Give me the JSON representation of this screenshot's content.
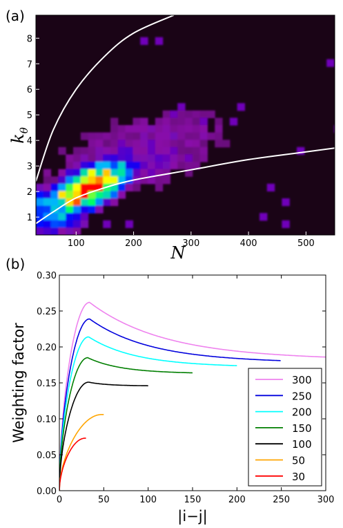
{
  "chart_data": [
    {
      "type": "heatmap",
      "panel_label": "(a)",
      "xlabel": "N",
      "ylabel_main": "k",
      "ylabel_sub": "θ",
      "xlim": [
        30,
        550
      ],
      "ylim": [
        0.3,
        8.9
      ],
      "xticks": [
        "100",
        "200",
        "300",
        "400",
        "500"
      ],
      "yticks": [
        "1",
        "2",
        "3",
        "4",
        "5",
        "6",
        "7",
        "8"
      ],
      "colormap": [
        "#1a0416",
        "#8a08a8",
        "#0000ff",
        "#00b4ff",
        "#00ff66",
        "#ffff00",
        "#ff8800",
        "#ff0000"
      ],
      "boundary_curves": [
        {
          "color": "#ffffff",
          "points": [
            [
              30,
              2.4
            ],
            [
              60,
              4.4
            ],
            [
              100,
              6.0
            ],
            [
              150,
              7.3
            ],
            [
              200,
              8.2
            ],
            [
              270,
              8.9
            ]
          ]
        },
        {
          "color": "#ffffff",
          "points": [
            [
              30,
              0.75
            ],
            [
              60,
              1.2
            ],
            [
              100,
              1.75
            ],
            [
              150,
              2.15
            ],
            [
              200,
              2.45
            ],
            [
              300,
              2.85
            ],
            [
              400,
              3.25
            ],
            [
              500,
              3.55
            ],
            [
              550,
              3.7
            ]
          ]
        }
      ],
      "density_peak": {
        "x": 120,
        "y": 2.4
      }
    },
    {
      "type": "line",
      "panel_label": "(b)",
      "xlabel": "|i−j|",
      "ylabel": "Weighting factor",
      "xlim": [
        0,
        300
      ],
      "ylim": [
        0,
        0.3
      ],
      "xticks": [
        "0",
        "50",
        "100",
        "150",
        "200",
        "250",
        "300"
      ],
      "yticks": [
        "0.00",
        "0.05",
        "0.10",
        "0.15",
        "0.20",
        "0.25",
        "0.30"
      ],
      "legend_position": "lower right",
      "series": [
        {
          "name": "300",
          "color": "#ee82ee",
          "N": 300,
          "peak_x": 34,
          "peak_y": 0.262,
          "end_y": 0.186
        },
        {
          "name": "250",
          "color": "#0000dd",
          "N": 250,
          "peak_x": 34,
          "peak_y": 0.239,
          "end_y": 0.181
        },
        {
          "name": "200",
          "color": "#00ffff",
          "N": 200,
          "peak_x": 33,
          "peak_y": 0.214,
          "end_y": 0.174
        },
        {
          "name": "150",
          "color": "#007f00",
          "N": 150,
          "peak_x": 32,
          "peak_y": 0.185,
          "end_y": 0.164
        },
        {
          "name": "100",
          "color": "#000000",
          "N": 100,
          "peak_x": 33,
          "peak_y": 0.151,
          "end_y": 0.146
        },
        {
          "name": "50",
          "color": "#ffa500",
          "N": 50,
          "peak_x": 48,
          "peak_y": 0.106,
          "end_y": 0.106
        },
        {
          "name": "30",
          "color": "#ff0000",
          "N": 30,
          "peak_x": 29,
          "peak_y": 0.073,
          "end_y": 0.073
        }
      ]
    }
  ]
}
